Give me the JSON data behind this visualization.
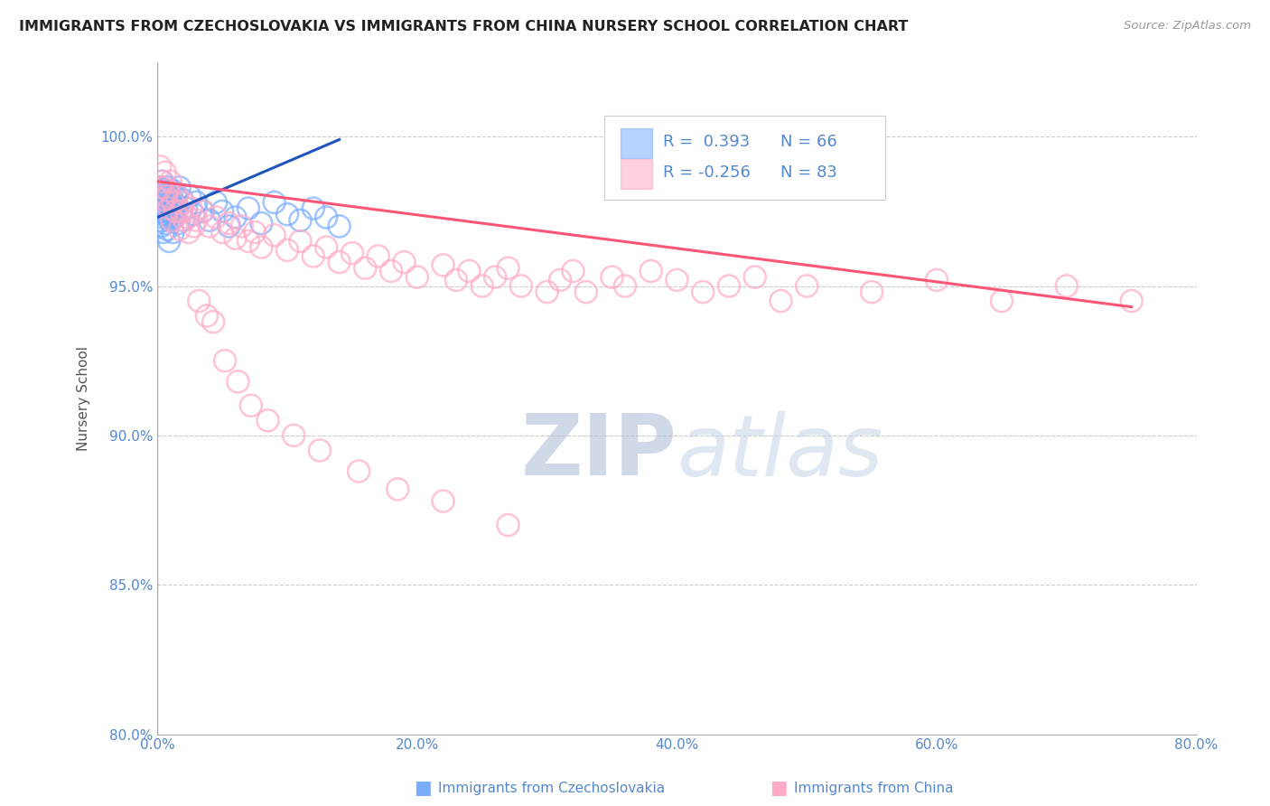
{
  "title": "IMMIGRANTS FROM CZECHOSLOVAKIA VS IMMIGRANTS FROM CHINA NURSERY SCHOOL CORRELATION CHART",
  "source_text": "Source: ZipAtlas.com",
  "xlabel_ticks": [
    "0.0%",
    "20.0%",
    "40.0%",
    "60.0%",
    "80.0%"
  ],
  "xlabel_values": [
    0.0,
    20.0,
    40.0,
    60.0,
    80.0
  ],
  "ylabel": "Nursery School",
  "ylabel_ticks": [
    "80.0%",
    "85.0%",
    "90.0%",
    "95.0%",
    "100.0%"
  ],
  "ylabel_values": [
    80.0,
    85.0,
    90.0,
    95.0,
    100.0
  ],
  "xlim": [
    0.0,
    80.0
  ],
  "ylim": [
    80.0,
    102.5
  ],
  "legend_label1": "Immigrants from Czechoslovakia",
  "legend_label2": "Immigrants from China",
  "R1": 0.393,
  "N1": 66,
  "R2": -0.256,
  "N2": 83,
  "color1": "#7aadff",
  "color2": "#ffaac8",
  "trendline1_color": "#2255bb",
  "trendline2_color": "#ff5577",
  "watermark_color": "#ccddf5",
  "background_color": "#ffffff",
  "grid_color": "#cccccc",
  "title_color": "#222222",
  "axis_label_color": "#555555",
  "tick_label_color": "#5588cc",
  "source_color": "#999999",
  "czech_x": [
    0.1,
    0.15,
    0.2,
    0.25,
    0.3,
    0.35,
    0.4,
    0.45,
    0.5,
    0.55,
    0.6,
    0.65,
    0.7,
    0.75,
    0.8,
    0.85,
    0.9,
    0.95,
    1.0,
    1.05,
    1.1,
    1.15,
    1.2,
    1.25,
    1.3,
    1.4,
    1.5,
    1.6,
    1.7,
    1.8,
    1.9,
    2.0,
    2.2,
    2.5,
    2.8,
    3.0,
    3.5,
    4.0,
    4.5,
    5.0,
    5.5,
    6.0,
    7.0,
    8.0,
    9.0,
    10.0,
    11.0,
    12.0,
    13.0,
    14.0,
    0.08,
    0.12,
    0.18,
    0.22,
    0.28,
    0.32,
    0.38,
    0.42,
    0.48,
    0.52,
    0.58,
    0.62,
    0.68,
    0.72,
    0.78,
    0.82
  ],
  "czech_y": [
    97.8,
    98.0,
    97.5,
    98.2,
    97.0,
    98.5,
    97.3,
    96.8,
    98.0,
    97.6,
    97.9,
    98.1,
    97.4,
    96.9,
    98.3,
    97.7,
    96.5,
    98.0,
    97.2,
    97.8,
    97.5,
    98.2,
    96.8,
    97.6,
    97.3,
    98.0,
    97.7,
    97.1,
    98.3,
    97.5,
    97.9,
    97.2,
    97.6,
    98.0,
    97.4,
    97.8,
    97.5,
    97.2,
    97.8,
    97.5,
    97.0,
    97.3,
    97.6,
    97.1,
    97.8,
    97.4,
    97.2,
    97.6,
    97.3,
    97.0,
    97.6,
    98.1,
    97.8,
    98.3,
    97.2,
    97.9,
    98.0,
    97.5,
    97.7,
    98.2,
    97.4,
    97.1,
    97.9,
    98.0,
    97.3,
    97.6
  ],
  "china_x": [
    0.2,
    0.4,
    0.6,
    0.8,
    1.0,
    1.2,
    1.5,
    1.8,
    2.0,
    2.3,
    2.6,
    3.0,
    3.5,
    4.0,
    4.5,
    5.0,
    5.5,
    6.0,
    6.5,
    7.0,
    7.5,
    8.0,
    9.0,
    10.0,
    11.0,
    12.0,
    13.0,
    14.0,
    15.0,
    16.0,
    17.0,
    18.0,
    19.0,
    20.0,
    22.0,
    23.0,
    24.0,
    25.0,
    26.0,
    27.0,
    28.0,
    30.0,
    31.0,
    32.0,
    33.0,
    35.0,
    36.0,
    38.0,
    40.0,
    42.0,
    44.0,
    46.0,
    48.0,
    50.0,
    55.0,
    60.0,
    65.0,
    70.0,
    75.0,
    0.3,
    0.5,
    0.7,
    0.9,
    1.1,
    1.4,
    1.7,
    2.1,
    2.4,
    2.8,
    3.2,
    3.8,
    4.3,
    5.2,
    6.2,
    7.2,
    8.5,
    10.5,
    12.5,
    15.5,
    18.5,
    22.0,
    27.0
  ],
  "china_y": [
    99.0,
    98.5,
    98.8,
    98.2,
    98.5,
    97.8,
    98.0,
    97.5,
    97.8,
    97.3,
    97.6,
    97.2,
    97.5,
    97.0,
    97.3,
    96.8,
    97.1,
    96.6,
    97.0,
    96.5,
    96.8,
    96.3,
    96.7,
    96.2,
    96.5,
    96.0,
    96.3,
    95.8,
    96.1,
    95.6,
    96.0,
    95.5,
    95.8,
    95.3,
    95.7,
    95.2,
    95.5,
    95.0,
    95.3,
    95.6,
    95.0,
    94.8,
    95.2,
    95.5,
    94.8,
    95.3,
    95.0,
    95.5,
    95.2,
    94.8,
    95.0,
    95.3,
    94.5,
    95.0,
    94.8,
    95.2,
    94.5,
    95.0,
    94.5,
    98.3,
    97.9,
    98.0,
    97.6,
    97.2,
    97.5,
    96.9,
    97.2,
    96.8,
    97.0,
    94.5,
    94.0,
    93.8,
    92.5,
    91.8,
    91.0,
    90.5,
    90.0,
    89.5,
    88.8,
    88.2,
    87.8,
    87.0
  ],
  "czech_trend_x0": 0.0,
  "czech_trend_x1": 14.0,
  "czech_trend_y0": 97.3,
  "czech_trend_y1": 99.9,
  "china_trend_x0": 0.0,
  "china_trend_x1": 75.0,
  "china_trend_y0": 98.5,
  "china_trend_y1": 94.3
}
